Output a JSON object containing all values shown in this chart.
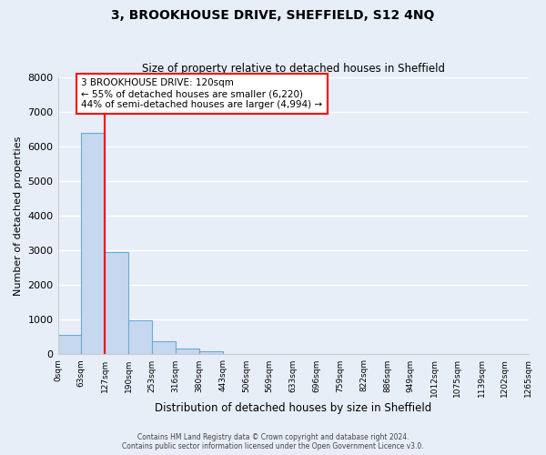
{
  "title": "3, BROOKHOUSE DRIVE, SHEFFIELD, S12 4NQ",
  "subtitle": "Size of property relative to detached houses in Sheffield",
  "xlabel": "Distribution of detached houses by size in Sheffield",
  "ylabel": "Number of detached properties",
  "bar_heights": [
    570,
    6380,
    2950,
    990,
    380,
    170,
    80,
    0,
    0,
    0,
    0,
    0,
    0,
    0,
    0,
    0,
    0,
    0,
    0,
    0
  ],
  "bin_edges": [
    0,
    63,
    127,
    190,
    253,
    316,
    380,
    443,
    506,
    569,
    633,
    696,
    759,
    822,
    886,
    949,
    1012,
    1075,
    1139,
    1202,
    1265
  ],
  "tick_labels": [
    "0sqm",
    "63sqm",
    "127sqm",
    "190sqm",
    "253sqm",
    "316sqm",
    "380sqm",
    "443sqm",
    "506sqm",
    "569sqm",
    "633sqm",
    "696sqm",
    "759sqm",
    "822sqm",
    "886sqm",
    "949sqm",
    "1012sqm",
    "1075sqm",
    "1139sqm",
    "1202sqm",
    "1265sqm"
  ],
  "bar_color": "#c5d8f0",
  "bar_edgecolor": "#6aaad4",
  "vline_x": 127,
  "vline_color": "red",
  "ylim": [
    0,
    8000
  ],
  "yticks": [
    0,
    1000,
    2000,
    3000,
    4000,
    5000,
    6000,
    7000,
    8000
  ],
  "annotation_box_text": "3 BROOKHOUSE DRIVE: 120sqm\n← 55% of detached houses are smaller (6,220)\n44% of semi-detached houses are larger (4,994) →",
  "bg_color": "#e8eef8",
  "grid_color": "#ffffff",
  "footer_line1": "Contains HM Land Registry data © Crown copyright and database right 2024.",
  "footer_line2": "Contains public sector information licensed under the Open Government Licence v3.0."
}
